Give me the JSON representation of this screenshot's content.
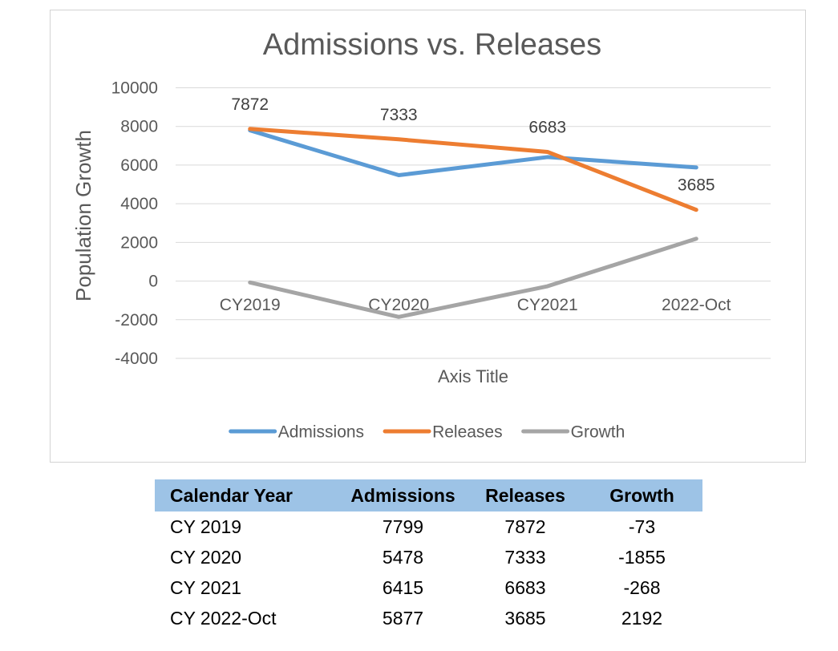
{
  "chart_data": {
    "type": "line",
    "title": "Admissions vs. Releases",
    "xlabel": "Axis Title",
    "ylabel": "Population Growth",
    "categories": [
      "CY2019",
      "CY2020",
      "CY2021",
      "2022-Oct"
    ],
    "series": [
      {
        "name": "Admissions",
        "color": "#5B9BD5",
        "values": [
          7799,
          5478,
          6415,
          5877
        ]
      },
      {
        "name": "Releases",
        "color": "#ED7D31",
        "values": [
          7872,
          7333,
          6683,
          3685
        ],
        "data_labels": [
          "7872",
          "7333",
          "6683",
          "3685"
        ]
      },
      {
        "name": "Growth",
        "color": "#A5A5A5",
        "values": [
          -73,
          -1855,
          -268,
          2192
        ]
      }
    ],
    "y_ticks": [
      10000,
      8000,
      6000,
      4000,
      2000,
      0,
      -2000,
      -4000
    ],
    "ylim": [
      -4000,
      10000
    ],
    "grid": true,
    "legend_position": "bottom",
    "gridline_color": "#D9D9D9",
    "axis_text_color": "#595959",
    "data_label_color": "#404040"
  },
  "table": {
    "headers": [
      "Calendar Year",
      "Admissions",
      "Releases",
      "Growth"
    ],
    "rows": [
      [
        "CY 2019",
        "7799",
        "7872",
        "-73"
      ],
      [
        "CY 2020",
        "5478",
        "7333",
        "-1855"
      ],
      [
        "CY 2021",
        "6415",
        "6683",
        "-268"
      ],
      [
        "CY 2022-Oct",
        "5877",
        "3685",
        "2192"
      ]
    ],
    "header_bg": "#9DC3E6"
  }
}
